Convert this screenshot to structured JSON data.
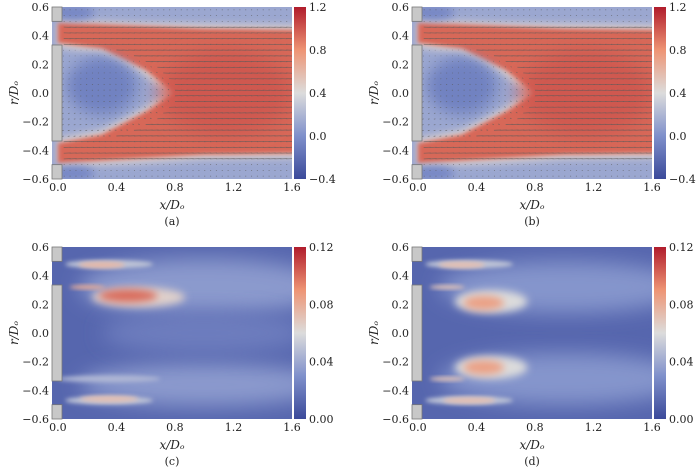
{
  "chart_data": [
    {
      "id": "a",
      "type": "heatmap",
      "caption": "(a)",
      "xlabel": "x/Dₒ",
      "ylabel": "r/Dₒ",
      "xlim": [
        -0.04,
        1.6
      ],
      "ylim": [
        -0.6,
        0.6
      ],
      "xticks": [
        "0.0",
        "0.4",
        "0.8",
        "1.2",
        "1.6"
      ],
      "xtick_values": [
        0,
        0.4,
        0.8,
        1.2,
        1.6
      ],
      "yticks": [
        "0.6",
        "0.4",
        "0.2",
        "0.0",
        "−0.2",
        "−0.4",
        "−0.6"
      ],
      "ytick_values": [
        0.6,
        0.4,
        0.2,
        0,
        -0.2,
        -0.4,
        -0.6
      ],
      "colorbar": {
        "range": [
          -0.4,
          1.2
        ],
        "ticks": [
          "1.2",
          "0.8",
          "0.4",
          "0.0",
          "−0.4"
        ],
        "tick_values": [
          1.2,
          0.8,
          0.4,
          0,
          -0.4
        ],
        "colormap": "coolwarm"
      },
      "vectors": true
    },
    {
      "id": "b",
      "type": "heatmap",
      "caption": "(b)",
      "xlabel": "x/Dₒ",
      "ylabel": "r/Dₒ",
      "xlim": [
        -0.04,
        1.6
      ],
      "ylim": [
        -0.6,
        0.6
      ],
      "xticks": [
        "0.0",
        "0.4",
        "0.8",
        "1.2",
        "1.6"
      ],
      "xtick_values": [
        0,
        0.4,
        0.8,
        1.2,
        1.6
      ],
      "yticks": [
        "0.6",
        "0.4",
        "0.2",
        "0.0",
        "−0.2",
        "−0.4",
        "−0.6"
      ],
      "ytick_values": [
        0.6,
        0.4,
        0.2,
        0,
        -0.2,
        -0.4,
        -0.6
      ],
      "colorbar": {
        "range": [
          -0.4,
          1.2
        ],
        "ticks": [
          "1.2",
          "0.8",
          "0.4",
          "0.0",
          "−0.4"
        ],
        "tick_values": [
          1.2,
          0.8,
          0.4,
          0,
          -0.4
        ],
        "colormap": "coolwarm"
      },
      "vectors": true
    },
    {
      "id": "c",
      "type": "heatmap",
      "caption": "(c)",
      "xlabel": "x/Dₒ",
      "ylabel": "r/Dₒ",
      "xlim": [
        -0.04,
        1.6
      ],
      "ylim": [
        -0.6,
        0.6
      ],
      "xticks": [
        "0.0",
        "0.4",
        "0.8",
        "1.2",
        "1.6"
      ],
      "xtick_values": [
        0,
        0.4,
        0.8,
        1.2,
        1.6
      ],
      "yticks": [
        "0.6",
        "0.4",
        "0.2",
        "0.0",
        "−0.2",
        "−0.4",
        "−0.6"
      ],
      "ytick_values": [
        0.6,
        0.4,
        0.2,
        0,
        -0.2,
        -0.4,
        -0.6
      ],
      "colorbar": {
        "range": [
          0,
          0.12
        ],
        "ticks": [
          "0.12",
          "0.08",
          "0.04",
          "0.00"
        ],
        "tick_values": [
          0.12,
          0.08,
          0.04,
          0
        ],
        "colormap": "coolwarm"
      },
      "vectors": false
    },
    {
      "id": "d",
      "type": "heatmap",
      "caption": "(d)",
      "xlabel": "x/Dₒ",
      "ylabel": "r/Dₒ",
      "xlim": [
        -0.04,
        1.6
      ],
      "ylim": [
        -0.6,
        0.6
      ],
      "xticks": [
        "0.0",
        "0.4",
        "0.8",
        "1.2",
        "1.6"
      ],
      "xtick_values": [
        0,
        0.4,
        0.8,
        1.2,
        1.6
      ],
      "yticks": [
        "0.6",
        "0.4",
        "0.2",
        "0.0",
        "−0.2",
        "−0.4",
        "−0.6"
      ],
      "ytick_values": [
        0.6,
        0.4,
        0.2,
        0,
        -0.2,
        -0.4,
        -0.6
      ],
      "colorbar": {
        "range": [
          0,
          0.12
        ],
        "ticks": [
          "0.12",
          "0.08",
          "0.04",
          "0.00"
        ],
        "tick_values": [
          0.12,
          0.08,
          0.04,
          0
        ],
        "colormap": "coolwarm"
      },
      "vectors": false
    }
  ]
}
